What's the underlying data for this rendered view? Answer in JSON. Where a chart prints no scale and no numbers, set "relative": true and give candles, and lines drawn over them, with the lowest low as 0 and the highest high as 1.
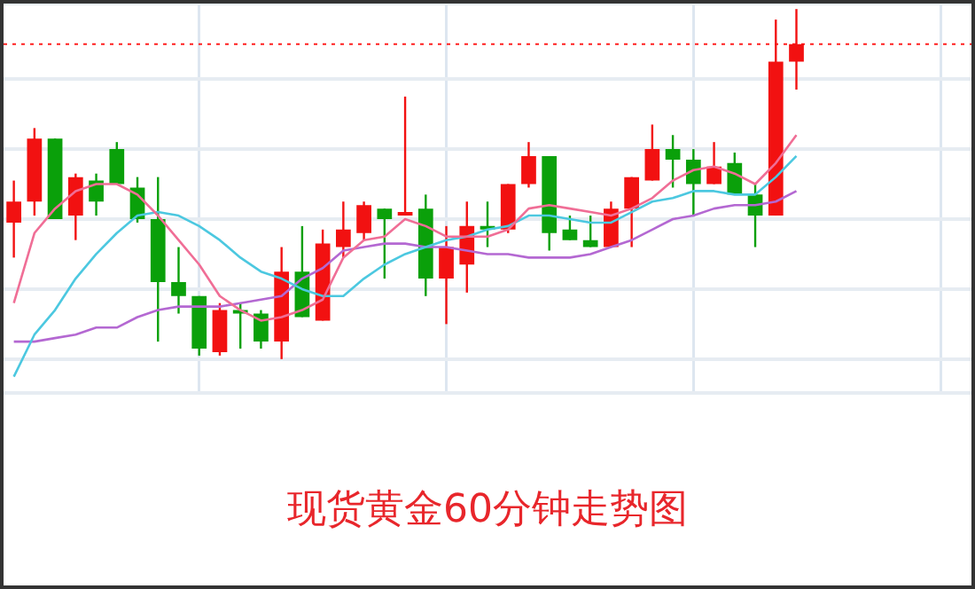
{
  "chart_data": {
    "type": "candlestick",
    "title": "现货黄金60分钟走势图",
    "relative": true,
    "categories": [
      null,
      null,
      null,
      null,
      null,
      null,
      null,
      null,
      null,
      null,
      null,
      null,
      null,
      null,
      null,
      null,
      null,
      null,
      null,
      null,
      null,
      null,
      null,
      null,
      null,
      null,
      null,
      null,
      null,
      null,
      null,
      null,
      null,
      null,
      null,
      null,
      null,
      null,
      null,
      null,
      null,
      null,
      null,
      null,
      null,
      null,
      null
    ],
    "ohlc": [
      [
        0.39,
        0.51,
        0.29,
        0.45
      ],
      [
        0.45,
        0.66,
        0.41,
        0.63
      ],
      [
        0.63,
        0.63,
        0.4,
        0.4
      ],
      [
        0.41,
        0.53,
        0.34,
        0.52
      ],
      [
        0.51,
        0.53,
        0.41,
        0.45
      ],
      [
        0.6,
        0.62,
        0.5,
        0.5
      ],
      [
        0.49,
        0.52,
        0.39,
        0.4
      ],
      [
        0.4,
        0.52,
        0.05,
        0.22
      ],
      [
        0.22,
        0.32,
        0.13,
        0.18
      ],
      [
        0.18,
        0.18,
        0.01,
        0.03
      ],
      [
        0.02,
        0.16,
        0.01,
        0.14
      ],
      [
        0.14,
        0.16,
        0.03,
        0.13
      ],
      [
        0.13,
        0.14,
        0.03,
        0.05
      ],
      [
        0.05,
        0.32,
        0,
        0.25
      ],
      [
        0.25,
        0.38,
        0.12,
        0.12
      ],
      [
        0.11,
        0.37,
        0.11,
        0.33
      ],
      [
        0.32,
        0.45,
        0.29,
        0.37
      ],
      [
        0.36,
        0.45,
        0.34,
        0.44
      ],
      [
        0.43,
        0.43,
        0.23,
        0.4
      ],
      [
        0.41,
        0.75,
        0.41,
        0.42
      ],
      [
        0.43,
        0.47,
        0.18,
        0.23
      ],
      [
        0.23,
        0.38,
        0.1,
        0.32
      ],
      [
        0.27,
        0.45,
        0.19,
        0.38
      ],
      [
        0.38,
        0.45,
        0.32,
        0.37
      ],
      [
        0.37,
        0.5,
        0.36,
        0.5
      ],
      [
        0.5,
        0.62,
        0.49,
        0.58
      ],
      [
        0.58,
        0.58,
        0.31,
        0.36
      ],
      [
        0.37,
        0.41,
        0.34,
        0.34
      ],
      [
        0.34,
        0.41,
        0.32,
        0.32
      ],
      [
        0.32,
        0.45,
        0.32,
        0.43
      ],
      [
        0.43,
        0.52,
        0.32,
        0.52
      ],
      [
        0.51,
        0.67,
        0.51,
        0.6
      ],
      [
        0.6,
        0.64,
        0.49,
        0.57
      ],
      [
        0.57,
        0.6,
        0.41,
        0.5
      ],
      [
        0.5,
        0.62,
        0.5,
        0.55
      ],
      [
        0.56,
        0.59,
        0.47,
        0.47
      ],
      [
        0.47,
        0.5,
        0.32,
        0.41
      ],
      [
        0.41,
        0.97,
        0.41,
        0.85
      ],
      [
        0.85,
        1,
        0.77,
        0.9
      ],
      null,
      null,
      null,
      null,
      null,
      null,
      null,
      null
    ],
    "colors": [
      "#f21111",
      "#f21111",
      "#0aa00a",
      "#f21111",
      "#0aa00a",
      "#0aa00a",
      "#0aa00a",
      "#0aa00a",
      "#0aa00a",
      "#0aa00a",
      "#f21111",
      "#0aa00a",
      "#0aa00a",
      "#f21111",
      "#0aa00a",
      "#f21111",
      "#f21111",
      "#f21111",
      "#0aa00a",
      "#f21111",
      "#0aa00a",
      "#f21111",
      "#f21111",
      "#0aa00a",
      "#f21111",
      "#f21111",
      "#0aa00a",
      "#0aa00a",
      "#0aa00a",
      "#f21111",
      "#f21111",
      "#f21111",
      "#0aa00a",
      "#0aa00a",
      "#f21111",
      "#0aa00a",
      "#0aa00a",
      "#f21111",
      "#f21111",
      null,
      null,
      null,
      null,
      null,
      null,
      null,
      null
    ],
    "series": [
      {
        "type": "line",
        "color": "#f06e96",
        "values": [
          0.16,
          0.36,
          0.43,
          0.48,
          0.5,
          0.5,
          0.47,
          0.41,
          0.34,
          0.27,
          0.18,
          0.14,
          0.11,
          0.12,
          0.14,
          0.17,
          0.29,
          0.34,
          0.35,
          0.4,
          0.38,
          0.35,
          0.35,
          0.35,
          0.37,
          0.43,
          0.44,
          0.43,
          0.42,
          0.41,
          0.43,
          0.46,
          0.51,
          0.54,
          0.55,
          0.53,
          0.5,
          0.56,
          0.64,
          null,
          null,
          null,
          null,
          null,
          null,
          null,
          null
        ]
      },
      {
        "type": "line",
        "color": "#4cc8e0",
        "values": [
          -0.05,
          0.07,
          0.14,
          0.23,
          0.3,
          0.36,
          0.41,
          0.42,
          0.41,
          0.38,
          0.34,
          0.29,
          0.25,
          0.23,
          0.2,
          0.18,
          0.18,
          0.23,
          0.27,
          0.3,
          0.32,
          0.34,
          0.35,
          0.37,
          0.38,
          0.41,
          0.41,
          0.4,
          0.39,
          0.39,
          0.42,
          0.45,
          0.46,
          0.48,
          0.48,
          0.47,
          0.47,
          0.52,
          0.58,
          null,
          null,
          null,
          null,
          null,
          null,
          null,
          null
        ]
      },
      {
        "type": "line",
        "color": "#b468d2",
        "values": [
          0.05,
          0.05,
          0.06,
          0.07,
          0.09,
          0.09,
          0.12,
          0.14,
          0.15,
          0.15,
          0.15,
          0.16,
          0.17,
          0.18,
          0.23,
          0.26,
          0.31,
          0.32,
          0.33,
          0.33,
          0.32,
          0.32,
          0.31,
          0.3,
          0.3,
          0.29,
          0.29,
          0.29,
          0.3,
          0.32,
          0.34,
          0.37,
          0.4,
          0.41,
          0.43,
          0.44,
          0.44,
          0.45,
          0.48,
          null,
          null,
          null,
          null,
          null,
          null,
          null,
          null
        ]
      }
    ],
    "ref_lines": [
      {
        "axis": "y",
        "value": 0.9,
        "color": "#ff2020",
        "line_style": "dotted"
      }
    ],
    "grid": true,
    "marker": "none"
  }
}
